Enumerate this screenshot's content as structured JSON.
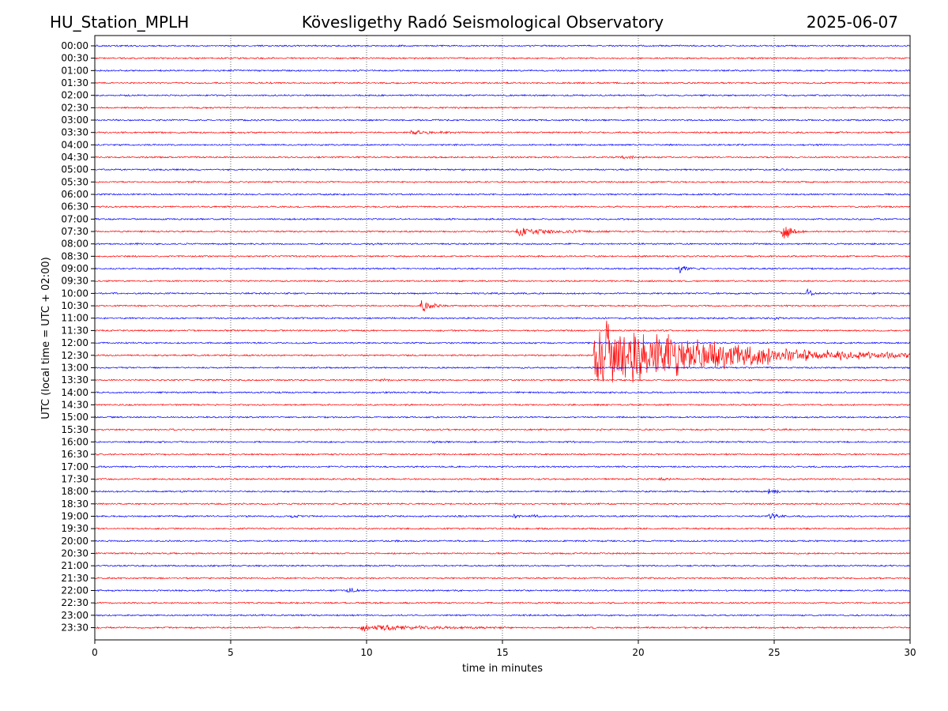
{
  "header": {
    "station": "HU_Station_MPLH",
    "observatory": "Kövesligethy Radó Seismological Observatory",
    "date": "2025-06-07"
  },
  "colors": {
    "trace_a": "#0000ff",
    "trace_b": "#ff0000",
    "axis": "#000000",
    "grid": "#000000",
    "background": "#ffffff"
  },
  "chart_data": {
    "type": "line",
    "subtype": "helicorder",
    "title": "Kövesligethy Radó Seismological Observatory",
    "xlabel": "time in minutes",
    "ylabel": "UTC (local time = UTC + 02:00)",
    "xlim": [
      0,
      30
    ],
    "x_ticks": [
      "0",
      "5",
      "10",
      "15",
      "20",
      "25",
      "30"
    ],
    "x_grid": "dotted vertical at 5-minute ticks",
    "row_labels": [
      "00:00",
      "00:30",
      "01:00",
      "01:30",
      "02:00",
      "02:30",
      "03:00",
      "03:30",
      "04:00",
      "04:30",
      "05:00",
      "05:30",
      "06:00",
      "06:30",
      "07:00",
      "07:30",
      "08:00",
      "08:30",
      "09:00",
      "09:30",
      "10:00",
      "10:30",
      "11:00",
      "11:30",
      "12:00",
      "12:30",
      "13:00",
      "13:30",
      "14:00",
      "14:30",
      "15:00",
      "15:30",
      "16:00",
      "16:30",
      "17:00",
      "17:30",
      "18:00",
      "18:30",
      "19:00",
      "19:30",
      "20:00",
      "20:30",
      "21:00",
      "21:30",
      "22:00",
      "22:30",
      "23:00",
      "23:30"
    ],
    "trace_color_order": [
      "blue",
      "red"
    ],
    "events": [
      {
        "row": "03:30",
        "start_min": 11.6,
        "duration_min": 2.8,
        "amplitude": 0.5
      },
      {
        "row": "04:30",
        "start_min": 19.4,
        "duration_min": 1.2,
        "amplitude": 0.4
      },
      {
        "row": "05:30",
        "start_min": 3.6,
        "duration_min": 0.4,
        "amplitude": 0.3
      },
      {
        "row": "07:30",
        "start_min": 15.5,
        "duration_min": 3.5,
        "amplitude": 1.1
      },
      {
        "row": "07:30",
        "start_min": 25.3,
        "duration_min": 0.8,
        "amplitude": 3.2
      },
      {
        "row": "08:00",
        "start_min": 10.0,
        "duration_min": 1.0,
        "amplitude": 0.3
      },
      {
        "row": "09:00",
        "start_min": 21.5,
        "duration_min": 0.8,
        "amplitude": 1.3
      },
      {
        "row": "10:00",
        "start_min": 26.2,
        "duration_min": 0.5,
        "amplitude": 1.8
      },
      {
        "row": "10:30",
        "start_min": 12.0,
        "duration_min": 1.0,
        "amplitude": 1.7
      },
      {
        "row": "11:00",
        "start_min": 25.0,
        "duration_min": 0.8,
        "amplitude": 0.4
      },
      {
        "row": "12:30",
        "start_min": 18.4,
        "duration_min": 11.6,
        "amplitude": 11.0
      },
      {
        "row": "13:30",
        "start_min": 10.5,
        "duration_min": 0.7,
        "amplitude": 0.3
      },
      {
        "row": "16:00",
        "start_min": 12.3,
        "duration_min": 0.6,
        "amplitude": 0.3
      },
      {
        "row": "17:30",
        "start_min": 20.8,
        "duration_min": 0.6,
        "amplitude": 0.4
      },
      {
        "row": "18:00",
        "start_min": 24.8,
        "duration_min": 0.6,
        "amplitude": 1.5
      },
      {
        "row": "19:00",
        "start_min": 7.2,
        "duration_min": 1.2,
        "amplitude": 0.3
      },
      {
        "row": "19:00",
        "start_min": 15.4,
        "duration_min": 0.3,
        "amplitude": 0.8
      },
      {
        "row": "19:00",
        "start_min": 16.1,
        "duration_min": 0.3,
        "amplitude": 0.5
      },
      {
        "row": "19:00",
        "start_min": 24.8,
        "duration_min": 0.7,
        "amplitude": 1.2
      },
      {
        "row": "22:00",
        "start_min": 9.3,
        "duration_min": 0.6,
        "amplitude": 1.2
      },
      {
        "row": "23:30",
        "start_min": 9.8,
        "duration_min": 5.5,
        "amplitude": 0.9
      }
    ]
  }
}
